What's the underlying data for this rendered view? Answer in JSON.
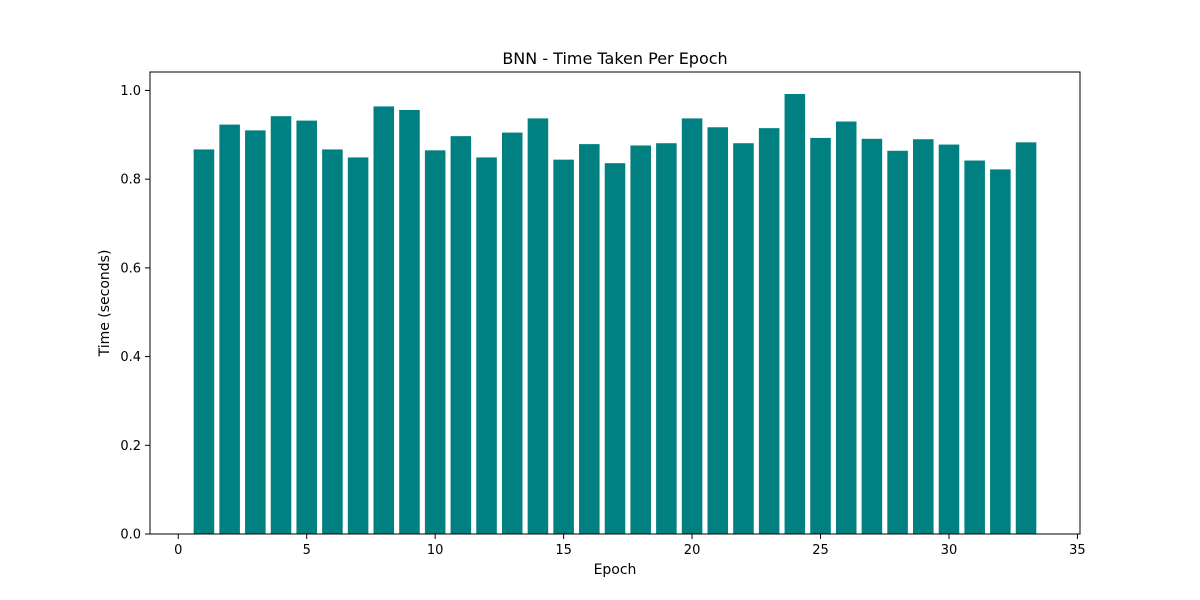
{
  "chart_data": {
    "type": "bar",
    "title": "BNN - Time Taken Per Epoch",
    "xlabel": "Epoch",
    "ylabel": "Time (seconds)",
    "x": [
      1,
      2,
      3,
      4,
      5,
      6,
      7,
      8,
      9,
      10,
      11,
      12,
      13,
      14,
      15,
      16,
      17,
      18,
      19,
      20,
      21,
      22,
      23,
      24,
      25,
      26,
      27,
      28,
      29,
      30,
      31,
      32,
      33
    ],
    "values": [
      0.867,
      0.923,
      0.91,
      0.942,
      0.932,
      0.867,
      0.849,
      0.964,
      0.956,
      0.865,
      0.897,
      0.849,
      0.905,
      0.937,
      0.844,
      0.879,
      0.836,
      0.876,
      0.881,
      0.937,
      0.917,
      0.881,
      0.915,
      0.992,
      0.893,
      0.93,
      0.891,
      0.864,
      0.89,
      0.878,
      0.842,
      0.822,
      0.883
    ],
    "xlim": [
      -1.1,
      35.1
    ],
    "ylim": [
      0,
      1.0416
    ],
    "xticks": [
      0,
      5,
      10,
      15,
      20,
      25,
      30,
      35
    ],
    "xtick_labels": [
      "0",
      "5",
      "10",
      "15",
      "20",
      "25",
      "30",
      "35"
    ],
    "yticks": [
      0.0,
      0.2,
      0.4,
      0.6,
      0.8,
      1.0
    ],
    "ytick_labels": [
      "0.0",
      "0.2",
      "0.4",
      "0.6",
      "0.8",
      "1.0"
    ],
    "bar_color": "#008080",
    "grid": false,
    "legend": "none"
  }
}
